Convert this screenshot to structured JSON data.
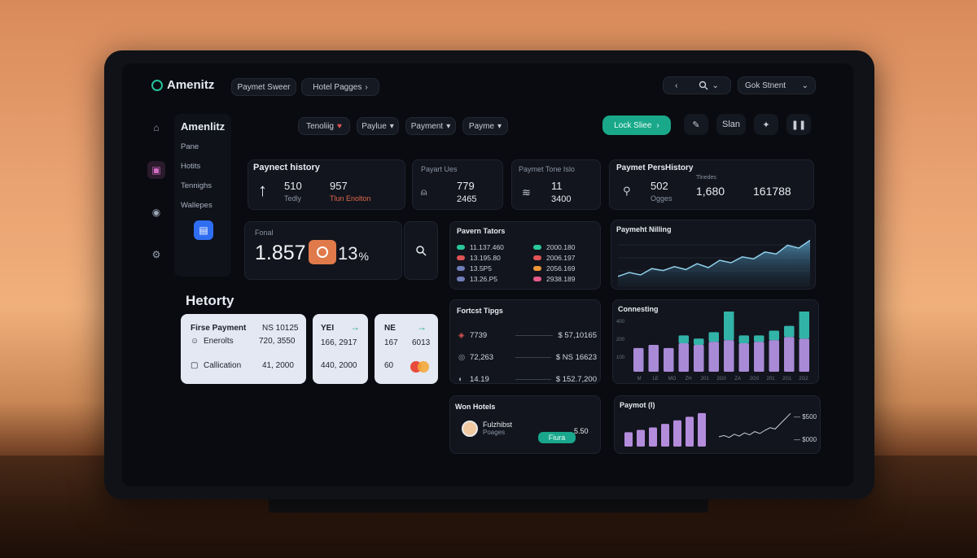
{
  "header": {
    "app_name": "Amenitz",
    "tabs": [
      "Paymet Sweer",
      "Hotel Pagges"
    ],
    "tab_arrow": "›",
    "search_icon": "search-icon",
    "back_glyph": "‹",
    "chevron_glyph": "⌄",
    "start_select": "Gok Stnent"
  },
  "sidebar": {
    "brand": "Amenlitz",
    "items": [
      "Pane",
      "Hotits",
      "Tennighs",
      "Wallepes"
    ]
  },
  "filters": [
    "Tenoliig",
    "Paylue",
    "Payment",
    "Payme"
  ],
  "toolbar": {
    "cta_label": "Lock Sliee",
    "cta_arrow": "›",
    "sign_label": "Slan"
  },
  "stats": {
    "payment_history": {
      "title": "Paynect history",
      "value_a": "510",
      "label_a": "Tedly",
      "value_b": "957",
      "label_b": "Tlun Enolton"
    },
    "payment_ues": {
      "title": "Payart Ues",
      "value": "779",
      "sub": "2465"
    },
    "payment_tone": {
      "title": "Paymet Tone Islo",
      "value": "11",
      "sub": "3400"
    },
    "payment_perhistory": {
      "title": "Paymet PersHistory",
      "value_a": "502",
      "label_a": "Ogges",
      "value_b": "1,680",
      "value_c": "161788",
      "small_label": "Tlnedes"
    }
  },
  "kpi": {
    "label": "Fonal",
    "value": "1.857",
    "percent": "13",
    "percent_unit": "%"
  },
  "history": {
    "title": "Hetorty",
    "card1": {
      "title": "Firse Payment",
      "title_value": "NS 10125",
      "row1_label": "Enerolts",
      "row1_value": "720, 3550",
      "row2_label": "Callication",
      "row2_value": "41, 2000"
    },
    "card2": {
      "title": "YEI",
      "row1_value": "166, 2917",
      "row2_value": "440, 2000"
    },
    "card3": {
      "title": "NE",
      "row1_a": "167",
      "row1_b": "6013",
      "row2_a": "60"
    }
  },
  "payment_tators": {
    "title": "Pavern Tators",
    "left": [
      "11.137.460",
      "13.195.80",
      "13.5P5",
      "13.26.P5"
    ],
    "right": [
      "2000.180",
      "2006.197",
      "2056.169",
      "2938.189"
    ],
    "left_colors": [
      "#2bc79a",
      "#e05454",
      "#6f7db8",
      "#6f7db8"
    ],
    "right_colors": [
      "#2bc79a",
      "#e05454",
      "#f0963a",
      "#e65a8a"
    ]
  },
  "forecast": {
    "title": "Fortcst Tipgs",
    "rows": [
      {
        "left": "7739",
        "right": "$ 57,10165"
      },
      {
        "left": "72,263",
        "right": "$ NS 16623"
      },
      {
        "left": "14.19",
        "right": "$ 152.7,200"
      }
    ]
  },
  "billing": {
    "title": "Paymeht Nilling",
    "values": [
      22,
      30,
      25,
      38,
      34,
      42,
      36,
      48,
      40,
      55,
      50,
      62,
      58,
      72,
      68,
      86,
      80,
      96
    ]
  },
  "connecting": {
    "title": "Connesting",
    "y_ticks": [
      "400",
      "200",
      "100"
    ],
    "x_ticks": [
      "M",
      "LE",
      "MO",
      "ZH",
      "201",
      "2G0",
      "ZA",
      "2G0",
      "201",
      "2G1",
      "2G2"
    ],
    "purple": [
      30,
      34,
      30,
      36,
      34,
      38,
      40,
      36,
      38,
      40,
      44,
      42
    ],
    "teal": [
      0,
      0,
      0,
      10,
      8,
      12,
      46,
      10,
      8,
      12,
      14,
      62
    ],
    "purple_color": "#a88ad6",
    "teal_color": "#32b3a8"
  },
  "won_hotels": {
    "title": "Won Hotels",
    "name": "Fulzhibst",
    "sub": "Poages",
    "button": "Fiura",
    "value": "5.50"
  },
  "payment_ii": {
    "title": "Paymot (I)",
    "bars": [
      24,
      28,
      32,
      38,
      44,
      50,
      56
    ],
    "line": [
      10,
      12,
      9,
      14,
      11,
      16,
      13,
      18,
      15,
      20,
      24,
      22,
      30,
      38,
      46
    ],
    "label_top": "$500",
    "label_bottom": "$000",
    "bar_color": "#b48cdc"
  }
}
